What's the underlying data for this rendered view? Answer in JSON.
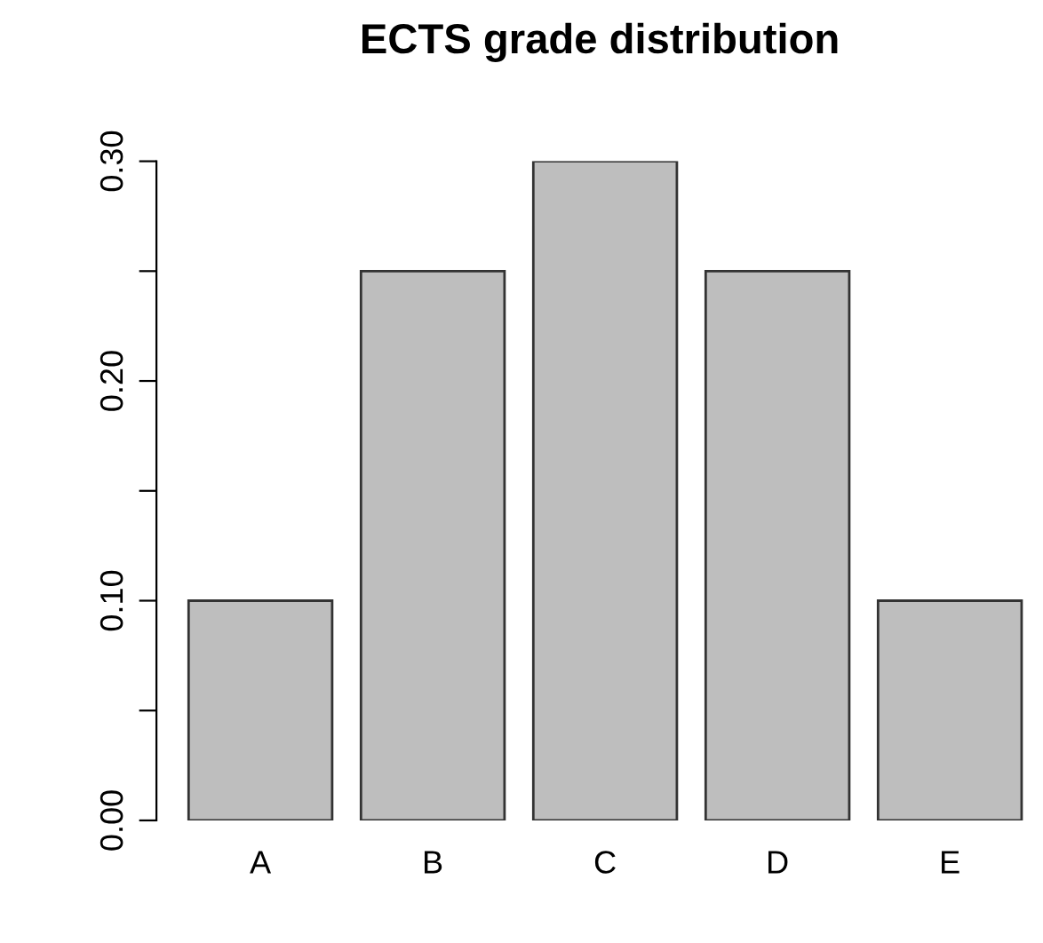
{
  "chart_data": {
    "type": "bar",
    "title": "ECTS grade distribution",
    "categories": [
      "A",
      "B",
      "C",
      "D",
      "E"
    ],
    "values": [
      0.1,
      0.25,
      0.3,
      0.25,
      0.1
    ],
    "color": "#bebebe",
    "ylim": [
      0,
      0.3
    ],
    "yticks": [
      {
        "value": 0,
        "label": "0.00"
      },
      {
        "value": 0.05,
        "label": null
      },
      {
        "value": 0.1,
        "label": "0.10"
      },
      {
        "value": 0.15,
        "label": null
      },
      {
        "value": 0.2,
        "label": "0.20"
      },
      {
        "value": 0.25,
        "label": null
      },
      {
        "value": 0.3,
        "label": "0.30"
      }
    ],
    "grid": false,
    "legend": false
  }
}
